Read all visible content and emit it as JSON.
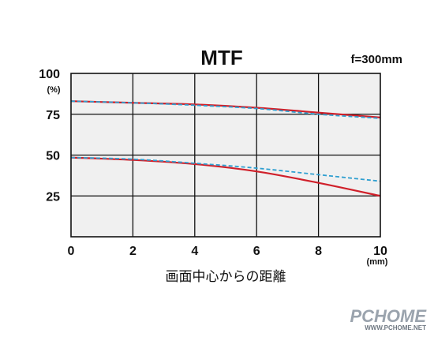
{
  "chart_data": {
    "type": "line",
    "title": "MTF",
    "subtitle": "f=300mm",
    "xlabel": "画面中心からの距離",
    "xunit": "(mm)",
    "yunit": "(%)",
    "xlim": [
      0,
      10
    ],
    "ylim": [
      0,
      100
    ],
    "xticks": [
      "0",
      "2",
      "4",
      "6",
      "8",
      "10"
    ],
    "yticks": [
      "100",
      "75",
      "50",
      "25"
    ],
    "grid": true,
    "colors": {
      "solid": "#d0202a",
      "dashed": "#2f9fd0",
      "grid": "#111111",
      "background": "#f0f0f0"
    },
    "series": [
      {
        "style": "solid",
        "color": "#d0202a",
        "x": [
          0,
          2,
          4,
          6,
          8,
          10
        ],
        "values": [
          83,
          82,
          81,
          79,
          76,
          73
        ]
      },
      {
        "style": "dashed",
        "color": "#2f9fd0",
        "x": [
          0,
          2,
          4,
          6,
          8,
          10
        ],
        "values": [
          83,
          82,
          80.5,
          78.5,
          75,
          72.5
        ]
      },
      {
        "style": "solid",
        "color": "#d0202a",
        "x": [
          0,
          2,
          4,
          6,
          8,
          10
        ],
        "values": [
          48.5,
          47,
          44.5,
          40,
          33,
          25
        ]
      },
      {
        "style": "dashed",
        "color": "#2f9fd0",
        "x": [
          0,
          2,
          4,
          6,
          8,
          10
        ],
        "values": [
          48.5,
          47.5,
          45,
          42,
          38,
          34
        ]
      }
    ]
  },
  "watermark": {
    "text": "PCHOME",
    "small": "WWW.PCHOME.NET"
  }
}
